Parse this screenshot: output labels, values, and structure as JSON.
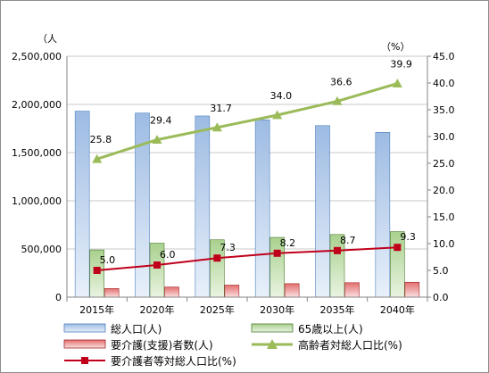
{
  "chart_data": {
    "type": "bar",
    "categories": [
      "2015年",
      "2020年",
      "2025年",
      "2030年",
      "2035年",
      "2040年"
    ],
    "y_left": {
      "unit_label": "（人",
      "ylim": [
        0,
        2500000
      ],
      "ticks": [
        "0",
        "500,000",
        "1,000,000",
        "1,500,000",
        "2,000,000",
        "2,500,000"
      ]
    },
    "y_right": {
      "unit_label": "（%）",
      "ylim": [
        0,
        45
      ],
      "ticks": [
        "0.0",
        "5.0",
        "10.0",
        "15.0",
        "20.0",
        "25.0",
        "30.0",
        "35.0",
        "40.0",
        "45.0"
      ]
    },
    "gridlines": true,
    "legend_position": "bottom",
    "series": [
      {
        "name": "総人口(人)",
        "kind": "bar",
        "axis": "left",
        "color": "#9dbbe3",
        "values": [
          1930000,
          1910000,
          1880000,
          1840000,
          1780000,
          1710000
        ]
      },
      {
        "name": "65歳以上(人)",
        "kind": "bar",
        "axis": "left",
        "color": "#a9d18e",
        "values": [
          490000,
          560000,
          595000,
          620000,
          650000,
          680000
        ]
      },
      {
        "name": "要介護(支援)者数(人)",
        "kind": "bar",
        "axis": "left",
        "color": "#e36f6f",
        "values": [
          90000,
          105000,
          125000,
          140000,
          150000,
          155000
        ]
      },
      {
        "name": "高齢者対総人口比(%)",
        "kind": "line",
        "axis": "right",
        "color": "#9bbb59",
        "values": [
          25.8,
          29.4,
          31.7,
          34.0,
          36.6,
          39.9
        ],
        "labels": [
          "25.8",
          "29.4",
          "31.7",
          "34.0",
          "36.6",
          "39.9"
        ]
      },
      {
        "name": "要介護者等対総人口比(%)",
        "kind": "line",
        "axis": "right",
        "color": "#c0001a",
        "values": [
          5.0,
          6.0,
          7.3,
          8.2,
          8.7,
          9.3
        ],
        "labels": [
          "5.0",
          "6.0",
          "7.3",
          "8.2",
          "8.7",
          "9.3"
        ]
      }
    ]
  }
}
